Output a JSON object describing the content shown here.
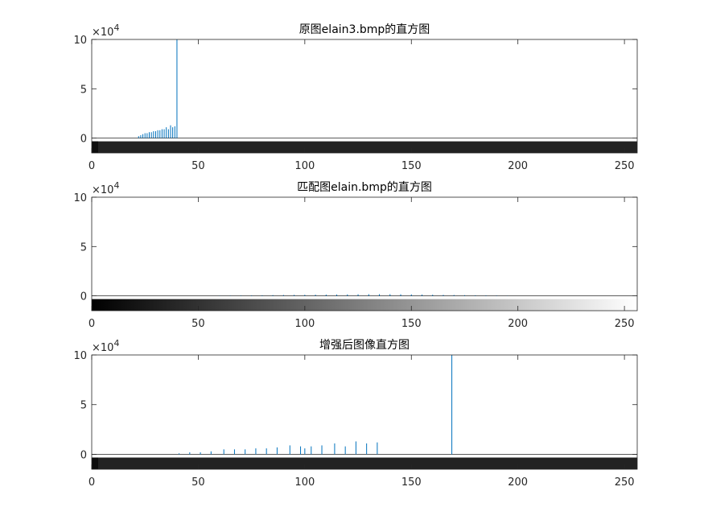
{
  "colors": {
    "stem": "#0072BD",
    "axes": "#262626",
    "background": "#ffffff"
  },
  "chart_data": [
    {
      "type": "bar",
      "title": "原图elain3.bmp的直方图",
      "exponent_label": "×10",
      "exponent_power": "4",
      "xlim": [
        0,
        256
      ],
      "ylim": [
        -1.5,
        10
      ],
      "xticks": [
        "0",
        "50",
        "100",
        "150",
        "200",
        "250"
      ],
      "yticks": [
        "0",
        "5",
        "10"
      ],
      "colorbar": "dark",
      "x": [
        22,
        23,
        24,
        25,
        26,
        27,
        28,
        29,
        30,
        31,
        32,
        33,
        34,
        35,
        36,
        37,
        38,
        39,
        40
      ],
      "values": [
        0.2,
        0.3,
        0.4,
        0.5,
        0.5,
        0.6,
        0.6,
        0.7,
        0.7,
        0.8,
        0.8,
        0.9,
        0.9,
        1.1,
        0.9,
        1.3,
        1.1,
        1.2,
        10
      ]
    },
    {
      "type": "bar",
      "title": "匹配图elain.bmp的直方图",
      "exponent_label": "×10",
      "exponent_power": "4",
      "xlim": [
        0,
        256
      ],
      "ylim": [
        -1.5,
        10
      ],
      "xticks": [
        "0",
        "50",
        "100",
        "150",
        "200",
        "250"
      ],
      "yticks": [
        "0",
        "5",
        "10"
      ],
      "colorbar": "gradient",
      "x": [
        60,
        65,
        70,
        75,
        80,
        85,
        90,
        95,
        100,
        105,
        110,
        115,
        120,
        125,
        130,
        135,
        140,
        145,
        150,
        155,
        160,
        165,
        170,
        175,
        180,
        185,
        190,
        195
      ],
      "values": [
        0.02,
        0.03,
        0.04,
        0.05,
        0.06,
        0.08,
        0.09,
        0.1,
        0.11,
        0.12,
        0.13,
        0.14,
        0.15,
        0.16,
        0.17,
        0.17,
        0.17,
        0.16,
        0.15,
        0.13,
        0.12,
        0.1,
        0.09,
        0.07,
        0.06,
        0.05,
        0.04,
        0.02
      ]
    },
    {
      "type": "bar",
      "title": "增强后图像直方图",
      "exponent_label": "×10",
      "exponent_power": "4",
      "xlim": [
        0,
        256
      ],
      "ylim": [
        -1.5,
        10
      ],
      "xticks": [
        "0",
        "50",
        "100",
        "150",
        "200",
        "250"
      ],
      "yticks": [
        "0",
        "5",
        "10"
      ],
      "colorbar": "dark",
      "x": [
        41,
        46,
        51,
        56,
        62,
        67,
        72,
        77,
        82,
        87,
        93,
        98,
        100,
        103,
        108,
        114,
        119,
        124,
        129,
        134,
        169
      ],
      "values": [
        0.1,
        0.2,
        0.2,
        0.3,
        0.5,
        0.5,
        0.5,
        0.6,
        0.6,
        0.7,
        0.9,
        0.8,
        0.6,
        0.8,
        0.9,
        1.1,
        0.8,
        1.3,
        1.1,
        1.2,
        10
      ]
    }
  ]
}
